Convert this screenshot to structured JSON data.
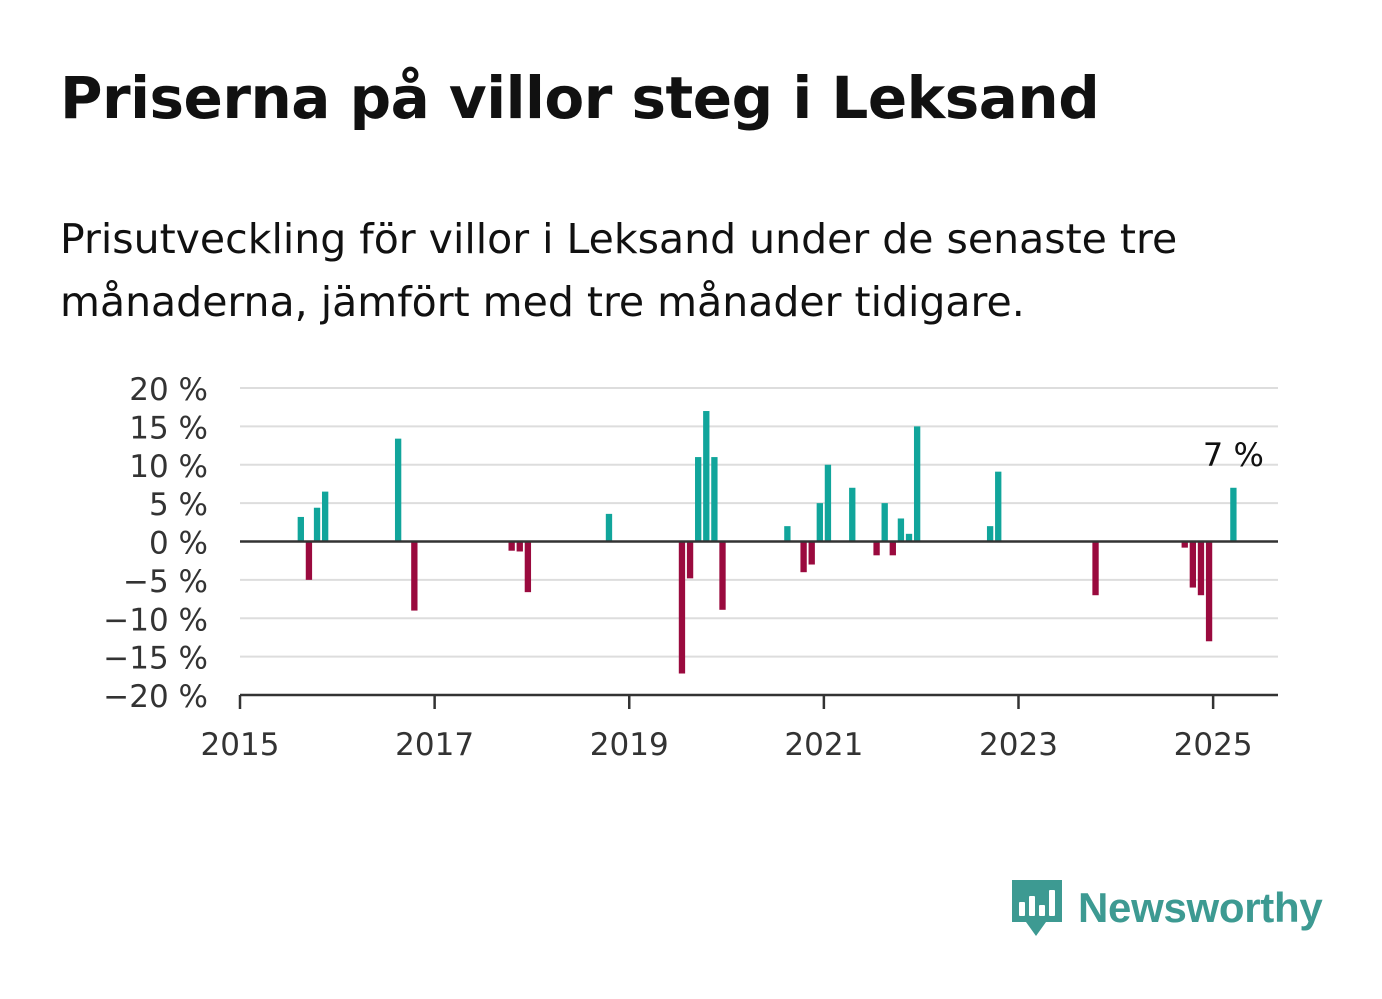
{
  "title": "Priserna på villor steg i Leksand",
  "subtitle": "Prisutveckling för villor i Leksand under de senaste tre månaderna, jämfört med tre månader tidigare.",
  "brand": {
    "name": "Newsworthy",
    "icon": "newsworthy-bar-chart-icon",
    "color": "#3d9a92"
  },
  "colors": {
    "positive": "#11a59b",
    "negative": "#9a0a3e",
    "grid": "#dddddd",
    "axis": "#333333"
  },
  "chart_data": {
    "type": "bar",
    "y_ticks": [
      "20 %",
      "15 %",
      "10 %",
      "5 %",
      "0 %",
      "−5 %",
      "−10 %",
      "−15 %",
      "−20 %"
    ],
    "x_ticks": [
      "2015",
      "2017",
      "2019",
      "2021",
      "2023",
      "2025"
    ],
    "ylim": [
      -20,
      20
    ],
    "xlim": [
      "2015-01",
      "2025-09"
    ],
    "annotation": {
      "text": "7 %",
      "date": "2025-03"
    },
    "series": [
      {
        "unit": "%",
        "points": [
          {
            "date": "2015-08",
            "value": 3.2
          },
          {
            "date": "2015-09",
            "value": -5.0
          },
          {
            "date": "2015-10",
            "value": 4.4
          },
          {
            "date": "2015-11",
            "value": 6.5
          },
          {
            "date": "2016-08",
            "value": 13.4
          },
          {
            "date": "2016-10",
            "value": -9.0
          },
          {
            "date": "2017-10",
            "value": -1.2
          },
          {
            "date": "2017-11",
            "value": -1.3
          },
          {
            "date": "2017-12",
            "value": -6.6
          },
          {
            "date": "2018-10",
            "value": 3.6
          },
          {
            "date": "2019-07",
            "value": -17.2
          },
          {
            "date": "2019-08",
            "value": -4.8
          },
          {
            "date": "2019-09",
            "value": 11.0
          },
          {
            "date": "2019-10",
            "value": 17.0
          },
          {
            "date": "2019-11",
            "value": 11.0
          },
          {
            "date": "2019-12",
            "value": -8.9
          },
          {
            "date": "2020-08",
            "value": 2.0
          },
          {
            "date": "2020-10",
            "value": -4.0
          },
          {
            "date": "2020-11",
            "value": -3.0
          },
          {
            "date": "2020-12",
            "value": 5.0
          },
          {
            "date": "2021-01",
            "value": 10.0
          },
          {
            "date": "2021-04",
            "value": 7.0
          },
          {
            "date": "2021-07",
            "value": -1.8
          },
          {
            "date": "2021-08",
            "value": 5.0
          },
          {
            "date": "2021-09",
            "value": -1.8
          },
          {
            "date": "2021-10",
            "value": 3.0
          },
          {
            "date": "2021-11",
            "value": 1.0
          },
          {
            "date": "2021-12",
            "value": 15.0
          },
          {
            "date": "2022-09",
            "value": 2.0
          },
          {
            "date": "2022-10",
            "value": 9.1
          },
          {
            "date": "2023-10",
            "value": -7.0
          },
          {
            "date": "2024-09",
            "value": -0.8
          },
          {
            "date": "2024-10",
            "value": -6.0
          },
          {
            "date": "2024-11",
            "value": -7.0
          },
          {
            "date": "2024-12",
            "value": -13.0
          },
          {
            "date": "2025-03",
            "value": 7.0
          }
        ]
      }
    ]
  }
}
